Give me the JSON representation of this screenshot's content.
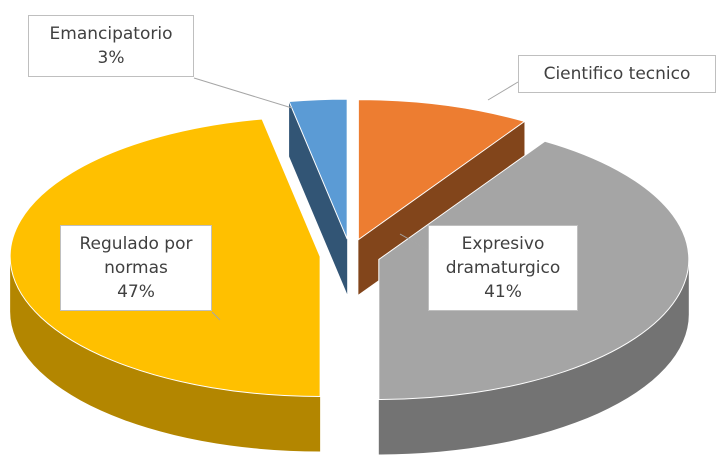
{
  "chart_data": {
    "type": "pie3d",
    "categories": [
      "Cientifico tecnico",
      "Expresivo dramaturgico",
      "Regulado por normas",
      "Emancipatorio"
    ],
    "values": [
      9,
      41,
      47,
      3
    ],
    "value_labels": [
      null,
      "41%",
      "47%",
      "3%"
    ],
    "colors": [
      "#ed7d31",
      "#a5a5a5",
      "#ffc000",
      "#5b9bd5"
    ]
  }
}
